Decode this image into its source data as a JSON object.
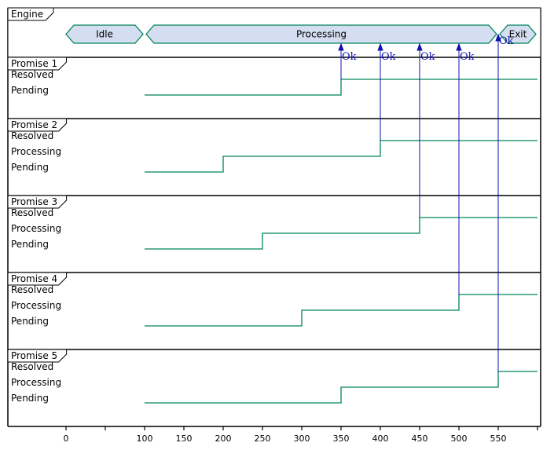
{
  "engine": {
    "title": "Engine",
    "states": [
      {
        "label": "Idle",
        "start": 0,
        "end": 100
      },
      {
        "label": "Processing",
        "start": 100,
        "end": 550
      },
      {
        "label": "Exit",
        "start": 550,
        "end": 600
      }
    ]
  },
  "promises": [
    {
      "title": "Promise 1",
      "levels": [
        "Resolved",
        "Pending"
      ],
      "changes": [
        {
          "t": 100,
          "state": "Pending"
        },
        {
          "t": 350,
          "state": "Resolved"
        }
      ]
    },
    {
      "title": "Promise 2",
      "levels": [
        "Resolved",
        "Processing",
        "Pending"
      ],
      "changes": [
        {
          "t": 100,
          "state": "Pending"
        },
        {
          "t": 200,
          "state": "Processing"
        },
        {
          "t": 400,
          "state": "Resolved"
        }
      ]
    },
    {
      "title": "Promise 3",
      "levels": [
        "Resolved",
        "Processing",
        "Pending"
      ],
      "changes": [
        {
          "t": 100,
          "state": "Pending"
        },
        {
          "t": 250,
          "state": "Processing"
        },
        {
          "t": 450,
          "state": "Resolved"
        }
      ]
    },
    {
      "title": "Promise 4",
      "levels": [
        "Resolved",
        "Processing",
        "Pending"
      ],
      "changes": [
        {
          "t": 100,
          "state": "Pending"
        },
        {
          "t": 300,
          "state": "Processing"
        },
        {
          "t": 500,
          "state": "Resolved"
        }
      ]
    },
    {
      "title": "Promise 5",
      "levels": [
        "Resolved",
        "Processing",
        "Pending"
      ],
      "changes": [
        {
          "t": 100,
          "state": "Pending"
        },
        {
          "t": 350,
          "state": "Processing"
        },
        {
          "t": 550,
          "state": "Resolved"
        }
      ]
    }
  ],
  "messages": [
    {
      "label": "Ok",
      "t": 350,
      "from": "Promise 1"
    },
    {
      "label": "Ok",
      "t": 400,
      "from": "Promise 2"
    },
    {
      "label": "Ok",
      "t": 450,
      "from": "Promise 3"
    },
    {
      "label": "Ok",
      "t": 500,
      "from": "Promise 4"
    },
    {
      "label": "Ok",
      "t": 550,
      "from": "Promise 5"
    }
  ],
  "axis": {
    "ticks": [
      0,
      50,
      100,
      150,
      200,
      250,
      300,
      350,
      400,
      450,
      500,
      550,
      600
    ],
    "labels": [
      "0",
      "",
      "100",
      "150",
      "200",
      "250",
      "300",
      "350",
      "400",
      "450",
      "500",
      "550",
      ""
    ]
  },
  "colors": {
    "signal": "#00845a",
    "message": "#1010b0",
    "state_fill": "#d4def0",
    "border": "#000000"
  }
}
